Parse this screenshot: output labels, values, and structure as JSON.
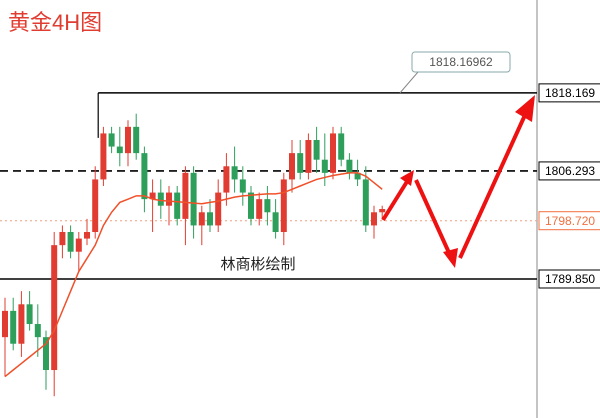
{
  "chart_data": {
    "type": "candlestick",
    "title": "黄金4H图",
    "watermark": "林商彬绘制",
    "annotation": {
      "value": 1818.16962,
      "label": "1818.16962"
    },
    "ylim": [
      1768.7,
      1832.3
    ],
    "up_color": "#e03c31",
    "down_color": "#2e9e5b",
    "ma_color": "#f0502a",
    "open": [
      1781,
      1785,
      1780,
      1786,
      1783,
      1781,
      1776,
      1795,
      1797,
      1794,
      1796,
      1797,
      1805,
      1812,
      1810,
      1809,
      1813,
      1809,
      1802,
      1803,
      1801,
      1803,
      1799,
      1806,
      1798,
      1800,
      1798,
      1803,
      1807,
      1805,
      1803,
      1799,
      1802,
      1800,
      1797,
      1805,
      1809,
      1806,
      1811,
      1808,
      1806,
      1812,
      1808,
      1806,
      1805,
      1798,
      1800
    ],
    "high": [
      1787,
      1787,
      1788,
      1788,
      1786,
      1782,
      1797,
      1798,
      1798,
      1797,
      1799,
      1807,
      1813,
      1813,
      1813,
      1814,
      1815,
      1810,
      1805,
      1805,
      1804,
      1804,
      1807,
      1807,
      1801,
      1802,
      1805,
      1809,
      1810,
      1807,
      1804,
      1803,
      1804,
      1802,
      1806,
      1811,
      1811,
      1812,
      1813,
      1812,
      1813,
      1813,
      1809,
      1808,
      1807,
      1801,
      1801
    ],
    "low": [
      1775,
      1779,
      1778,
      1782,
      1778,
      1773,
      1772,
      1793,
      1793,
      1791,
      1795,
      1796,
      1804,
      1809,
      1807,
      1807,
      1808,
      1800,
      1797,
      1799,
      1798,
      1798,
      1795,
      1796,
      1795,
      1797,
      1797,
      1801,
      1803,
      1801,
      1798,
      1798,
      1798,
      1796,
      1795,
      1803,
      1805,
      1805,
      1806,
      1804,
      1805,
      1807,
      1805,
      1804,
      1797,
      1796,
      1799
    ],
    "close": [
      1785,
      1780,
      1786,
      1783,
      1781,
      1776,
      1795,
      1797,
      1794,
      1796,
      1797,
      1805,
      1812,
      1810,
      1809,
      1813,
      1809,
      1802,
      1803,
      1801,
      1803,
      1799,
      1806,
      1798,
      1800,
      1798,
      1803,
      1807,
      1805,
      1803,
      1799,
      1802,
      1800,
      1797,
      1805,
      1809,
      1806,
      1811,
      1808,
      1806,
      1812,
      1808,
      1806,
      1805,
      1798,
      1800,
      1800.5
    ],
    "ma": [
      1775,
      1776,
      1777,
      1778,
      1779,
      1780,
      1782,
      1785,
      1788,
      1791,
      1793,
      1795,
      1798,
      1800,
      1801.5,
      1802,
      1802.5,
      1802.5,
      1802,
      1801.8,
      1801.7,
      1801.6,
      1801.5,
      1801.4,
      1801.3,
      1801.5,
      1801.7,
      1802,
      1802.3,
      1802.5,
      1802.6,
      1802.7,
      1802.8,
      1802.8,
      1803,
      1803.5,
      1804,
      1804.5,
      1805,
      1805.3,
      1805.6,
      1805.8,
      1806,
      1806,
      1805.5,
      1804.5,
      1803.5
    ],
    "price_lines": [
      {
        "value": 1818.169,
        "label": "1818.169",
        "style": "solid",
        "color": "#000000"
      },
      {
        "value": 1806.293,
        "label": "1806.293",
        "style": "dashed",
        "color": "#000000"
      },
      {
        "value": 1798.72,
        "label": "1798.720",
        "style": "dotted",
        "color": "#f0a080"
      },
      {
        "value": 1789.85,
        "label": "1789.850",
        "style": "solid",
        "color": "#000000"
      }
    ]
  }
}
